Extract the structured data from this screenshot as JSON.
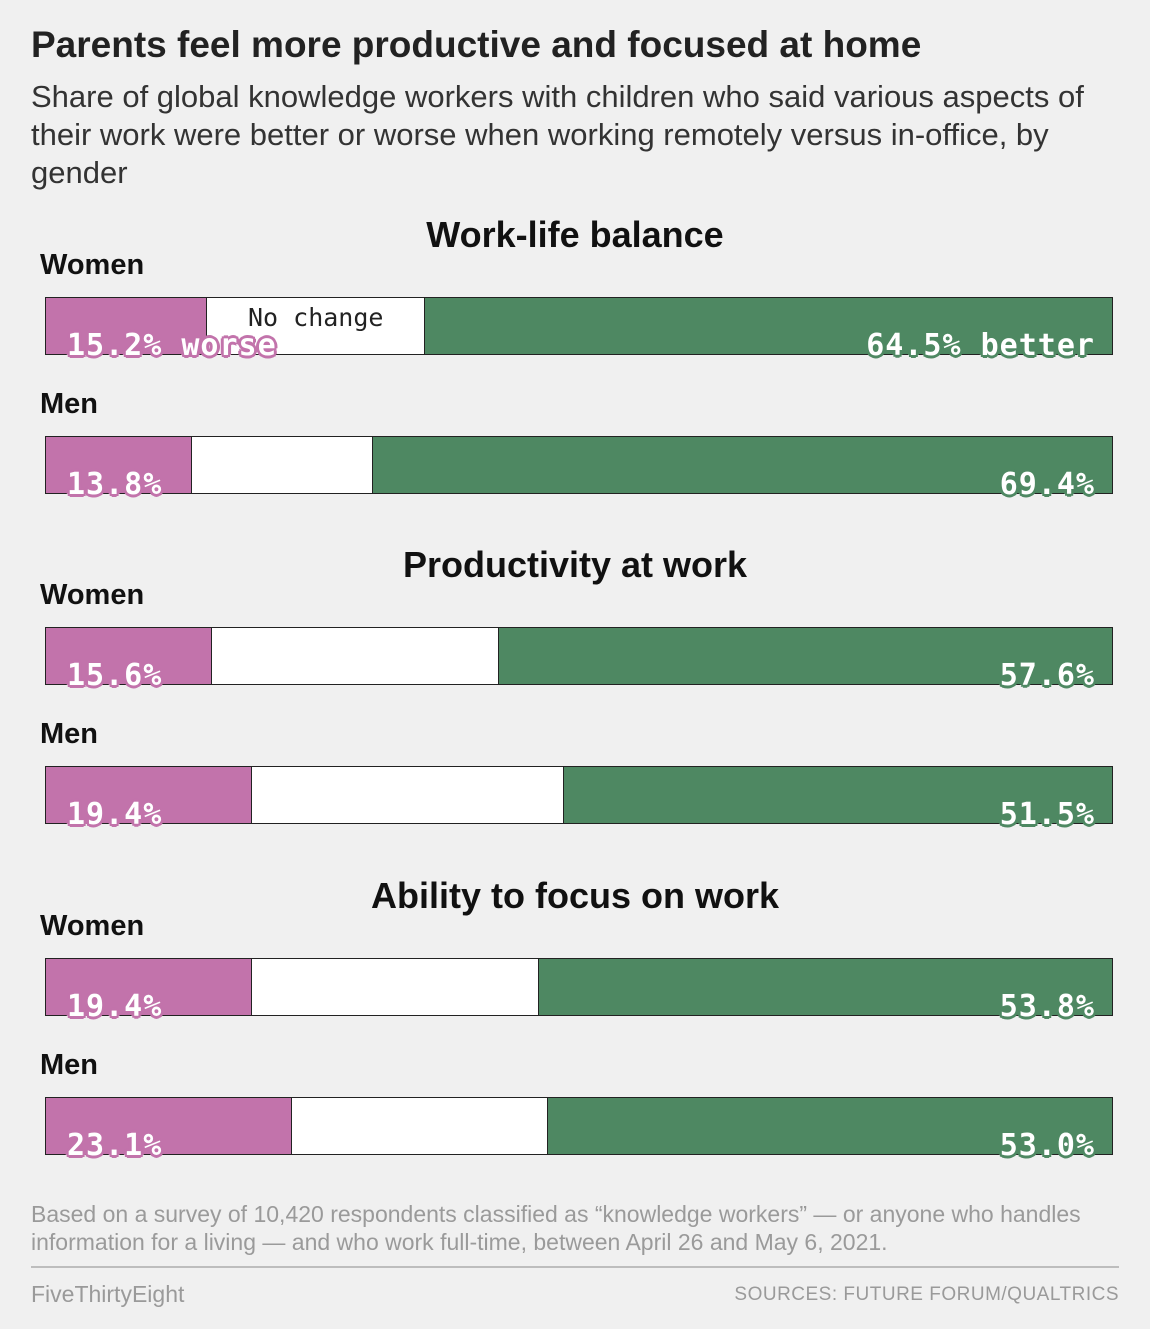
{
  "title": "Parents feel more productive and focused at home",
  "subtitle": "Share of global knowledge workers with children who said various aspects of their work were better or worse when working remotely versus in-office, by gender",
  "note": "Based on a survey of 10,420 respondents classified as “knowledge workers” — or anyone who handles information for a living — and who work full-time, between April 26 and May 6, 2021.",
  "brand": "FiveThirtyEight",
  "source": "SOURCES: FUTURE FORUM/QUALTRICS",
  "colors": {
    "worse": "#c273ab",
    "no_change": "#ffffff",
    "better": "#4e8862",
    "background": "#f0f0f0"
  },
  "chart_data": {
    "type": "bar",
    "stacked": true,
    "orientation": "horizontal",
    "unit": "%",
    "xlim": [
      0,
      100
    ],
    "segment_labels": {
      "worse_suffix": " worse",
      "better_suffix": " better",
      "no_change": "No change"
    },
    "panels": [
      {
        "title": "Work-life balance",
        "rows": [
          {
            "label": "Women",
            "worse": 15.2,
            "better": 64.5,
            "worse_text": "15.2% worse",
            "better_text": "64.5% better",
            "show_no_change_label": true
          },
          {
            "label": "Men",
            "worse": 13.8,
            "better": 69.4,
            "worse_text": "13.8%",
            "better_text": "69.4%"
          }
        ]
      },
      {
        "title": "Productivity at work",
        "rows": [
          {
            "label": "Women",
            "worse": 15.6,
            "better": 57.6,
            "worse_text": "15.6%",
            "better_text": "57.6%"
          },
          {
            "label": "Men",
            "worse": 19.4,
            "better": 51.5,
            "worse_text": "19.4%",
            "better_text": "51.5%"
          }
        ]
      },
      {
        "title": "Ability to focus on work",
        "rows": [
          {
            "label": "Women",
            "worse": 19.4,
            "better": 53.8,
            "worse_text": "19.4%",
            "better_text": "53.8%"
          },
          {
            "label": "Men",
            "worse": 23.1,
            "better": 53.0,
            "worse_text": "23.1%",
            "better_text": "53.0%"
          }
        ]
      }
    ]
  }
}
